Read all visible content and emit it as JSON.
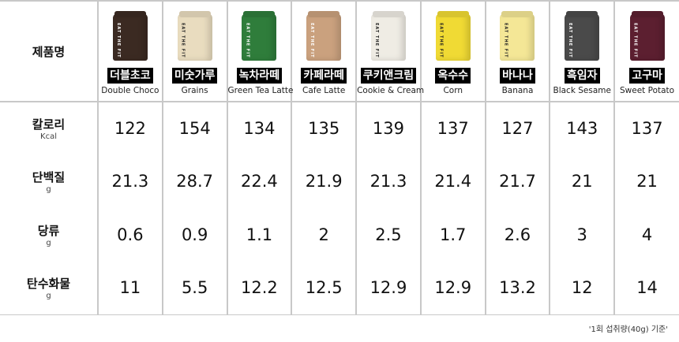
{
  "header_label": "제품명",
  "products": [
    {
      "ko": "더블초코",
      "en": "Double Choco",
      "color": "#3b2a22",
      "brand_color": "#fff"
    },
    {
      "ko": "미숫가루",
      "en": "Grains",
      "color": "#e9dcbf",
      "brand_color": "#222"
    },
    {
      "ko": "녹차라떼",
      "en": "Green Tea Latte",
      "color": "#2f7d3b",
      "brand_color": "#fff"
    },
    {
      "ko": "카페라떼",
      "en": "Cafe Latte",
      "color": "#caa17e",
      "brand_color": "#fff"
    },
    {
      "ko": "쿠키앤크림",
      "en": "Cookie & Cream",
      "color": "#efece4",
      "brand_color": "#222"
    },
    {
      "ko": "옥수수",
      "en": "Corn",
      "color": "#f0da34",
      "brand_color": "#222"
    },
    {
      "ko": "바나나",
      "en": "Banana",
      "color": "#f4e796",
      "brand_color": "#222"
    },
    {
      "ko": "흑임자",
      "en": "Black Sesame",
      "color": "#4a4a4a",
      "brand_color": "#fff"
    },
    {
      "ko": "고구마",
      "en": "Sweet Potato",
      "color": "#5c1f30",
      "brand_color": "#fff"
    }
  ],
  "brand_text": "EAT THE FIT",
  "rows": [
    {
      "name": "칼로리",
      "unit": "Kcal",
      "values": [
        "122",
        "154",
        "134",
        "135",
        "139",
        "137",
        "127",
        "143",
        "137"
      ]
    },
    {
      "name": "단백질",
      "unit": "g",
      "values": [
        "21.3",
        "28.7",
        "22.4",
        "21.9",
        "21.3",
        "21.4",
        "21.7",
        "21",
        "21"
      ]
    },
    {
      "name": "당류",
      "unit": "g",
      "values": [
        "0.6",
        "0.9",
        "1.1",
        "2",
        "2.5",
        "1.7",
        "2.6",
        "3",
        "4"
      ]
    },
    {
      "name": "탄수화물",
      "unit": "g",
      "values": [
        "11",
        "5.5",
        "12.2",
        "12.5",
        "12.9",
        "12.9",
        "13.2",
        "12",
        "14"
      ]
    }
  ],
  "footnote": "'1회 섭취량(40g) 기준'"
}
